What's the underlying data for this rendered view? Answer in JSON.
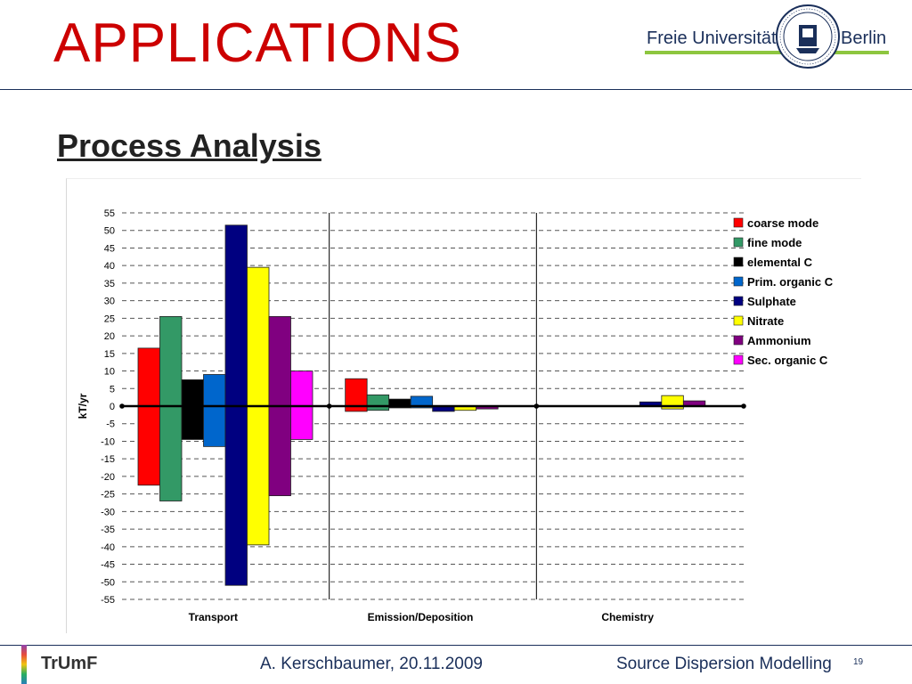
{
  "slide": {
    "title": "APPLICATIONS",
    "section_title": "Process Analysis"
  },
  "header": {
    "university_left": "Freie Universität",
    "university_right": "Berlin",
    "seal_icon": "university-seal-icon"
  },
  "footer": {
    "logo": "TrUmF",
    "author_date": "A. Kerschbaumer, 20.11.2009",
    "talk_title": "Source Dispersion Modelling",
    "page": "19"
  },
  "colors": {
    "title": "#cc0000",
    "navy": "#1a2f5a",
    "accent_green": "#8dc63f"
  },
  "chart_data": {
    "type": "bar",
    "title": "",
    "xlabel": "",
    "ylabel": "kT/yr",
    "ylim": [
      -55,
      55
    ],
    "yticks": [
      55,
      50,
      45,
      40,
      35,
      30,
      25,
      20,
      15,
      10,
      5,
      0,
      -5,
      -10,
      -15,
      -20,
      -25,
      -30,
      -35,
      -40,
      -45,
      -50,
      -55
    ],
    "grid": true,
    "legend_position": "top-right",
    "categories": [
      "Transport",
      "Emission/Deposition",
      "Chemistry"
    ],
    "series": [
      {
        "name": "coarse mode",
        "color": "#ff0000",
        "positive": [
          16.5,
          7.8,
          0
        ],
        "negative": [
          -22.5,
          -1.5,
          0
        ]
      },
      {
        "name": "fine mode",
        "color": "#339966",
        "positive": [
          25.5,
          3.2,
          0
        ],
        "negative": [
          -27,
          -1.2,
          0
        ]
      },
      {
        "name": "elemental C",
        "color": "#000000",
        "positive": [
          7.5,
          2.0,
          0
        ],
        "negative": [
          -9.5,
          -0.5,
          0
        ]
      },
      {
        "name": "Prim. organic C",
        "color": "#0066cc",
        "positive": [
          9,
          2.8,
          0
        ],
        "negative": [
          -11.5,
          -0.5,
          0
        ]
      },
      {
        "name": "Sulphate",
        "color": "#000080",
        "positive": [
          51.5,
          0,
          1.2
        ],
        "negative": [
          -51,
          -1.5,
          0
        ]
      },
      {
        "name": "Nitrate",
        "color": "#ffff00",
        "positive": [
          39.5,
          0,
          3.0
        ],
        "negative": [
          -39.5,
          -1.2,
          -0.8
        ]
      },
      {
        "name": "Ammonium",
        "color": "#800080",
        "positive": [
          25.5,
          0,
          1.5
        ],
        "negative": [
          -25.5,
          -0.8,
          0
        ]
      },
      {
        "name": "Sec. organic C",
        "color": "#ff00ff",
        "positive": [
          10,
          0,
          0
        ],
        "negative": [
          -9.5,
          0,
          0
        ]
      }
    ]
  }
}
